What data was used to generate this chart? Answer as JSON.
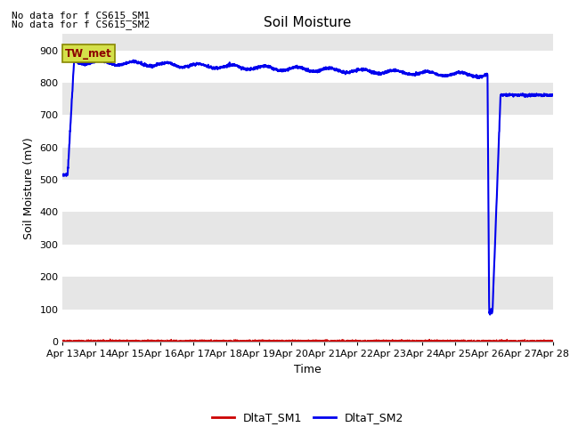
{
  "title": "Soil Moisture",
  "xlabel": "Time",
  "ylabel": "Soil Moisture (mV)",
  "annotation1": "No data for f CS615_SM1",
  "annotation2": "No data for f CS615_SM2",
  "box_label": "TW_met",
  "ylim": [
    0,
    950
  ],
  "yticks": [
    0,
    100,
    200,
    300,
    400,
    500,
    600,
    700,
    800,
    900
  ],
  "xtick_labels": [
    "Apr 13",
    "Apr 14",
    "Apr 15",
    "Apr 16",
    "Apr 17",
    "Apr 18",
    "Apr 19",
    "Apr 20",
    "Apr 21",
    "Apr 22",
    "Apr 23",
    "Apr 24",
    "Apr 25",
    "Apr 26",
    "Apr 27",
    "Apr 28"
  ],
  "bg_color_light": "#ebebeb",
  "bg_color_dark": "#d8d8d8",
  "fig_bg_color": "#ffffff",
  "line_sm1_color": "#cc0000",
  "line_sm2_color": "#0000ee",
  "legend_sm1": "DltaT_SM1",
  "legend_sm2": "DltaT_SM2",
  "title_fontsize": 11,
  "axis_label_fontsize": 9,
  "tick_fontsize": 8,
  "annotation_fontsize": 8,
  "band_colors": [
    "#ffffff",
    "#e8e8e8",
    "#ffffff",
    "#e8e8e8",
    "#ffffff",
    "#e8e8e8",
    "#ffffff",
    "#e8e8e8",
    "#ffffff"
  ]
}
